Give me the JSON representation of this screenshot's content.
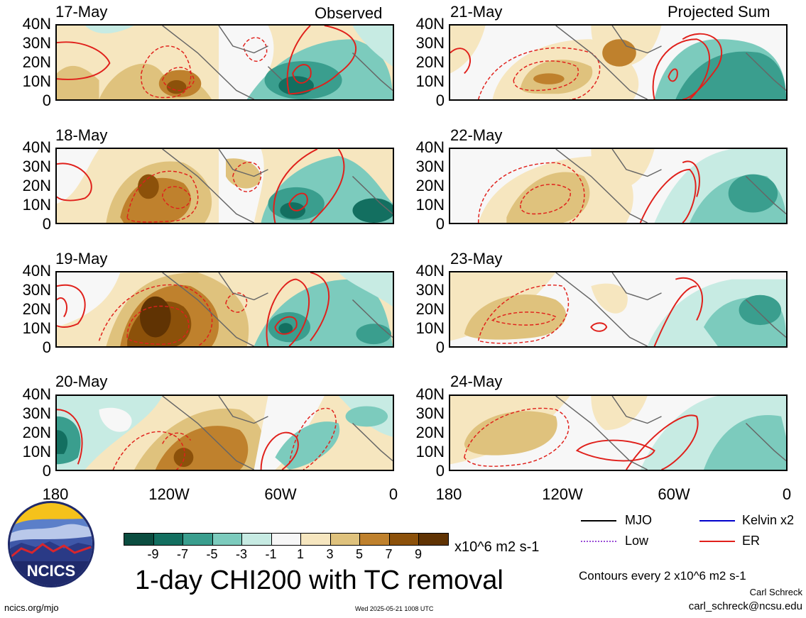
{
  "panel_titles": {
    "left": "Observed",
    "right": "Projected Sum"
  },
  "panels": [
    {
      "date": "17-May",
      "column": "observed"
    },
    {
      "date": "18-May",
      "column": "observed"
    },
    {
      "date": "19-May",
      "column": "observed"
    },
    {
      "date": "20-May",
      "column": "observed"
    },
    {
      "date": "21-May",
      "column": "projected"
    },
    {
      "date": "22-May",
      "column": "projected"
    },
    {
      "date": "23-May",
      "column": "projected"
    },
    {
      "date": "24-May",
      "column": "projected"
    }
  ],
  "y_axis_labels": [
    "40N",
    "30N",
    "20N",
    "10N",
    "0"
  ],
  "x_axis_labels": [
    "180",
    "120W",
    "60W",
    "0"
  ],
  "legend": {
    "mjo": {
      "label": "MJO",
      "color": "#000000"
    },
    "kelvin": {
      "label": "Kelvin x2",
      "color": "#0000cc"
    },
    "low": {
      "label": "Low",
      "color": "#9a4dd6"
    },
    "er": {
      "label": "ER",
      "color": "#e0201b"
    }
  },
  "colorbar": {
    "ticks": [
      "-9",
      "-7",
      "-5",
      "-3",
      "-1",
      "1",
      "3",
      "5",
      "7",
      "9"
    ],
    "colors": [
      "#0b4d40",
      "#136f60",
      "#3a9e8e",
      "#7ccbbd",
      "#c7ebe3",
      "#f7f7f7",
      "#f6e6bf",
      "#dfc27d",
      "#bf812d",
      "#8c510a",
      "#603303"
    ],
    "units": "x10^6 m2 s-1"
  },
  "title": "1-day CHI200 with TC removal",
  "contour_note": "Contours every 2 x10^6 m2 s-1",
  "author": "Carl Schreck",
  "email": "carl_schreck@ncsu.edu",
  "url": "ncics.org/mjo",
  "timestamp": "Wed 2025-05-21 1008 UTC",
  "logo_text": "NCICS"
}
